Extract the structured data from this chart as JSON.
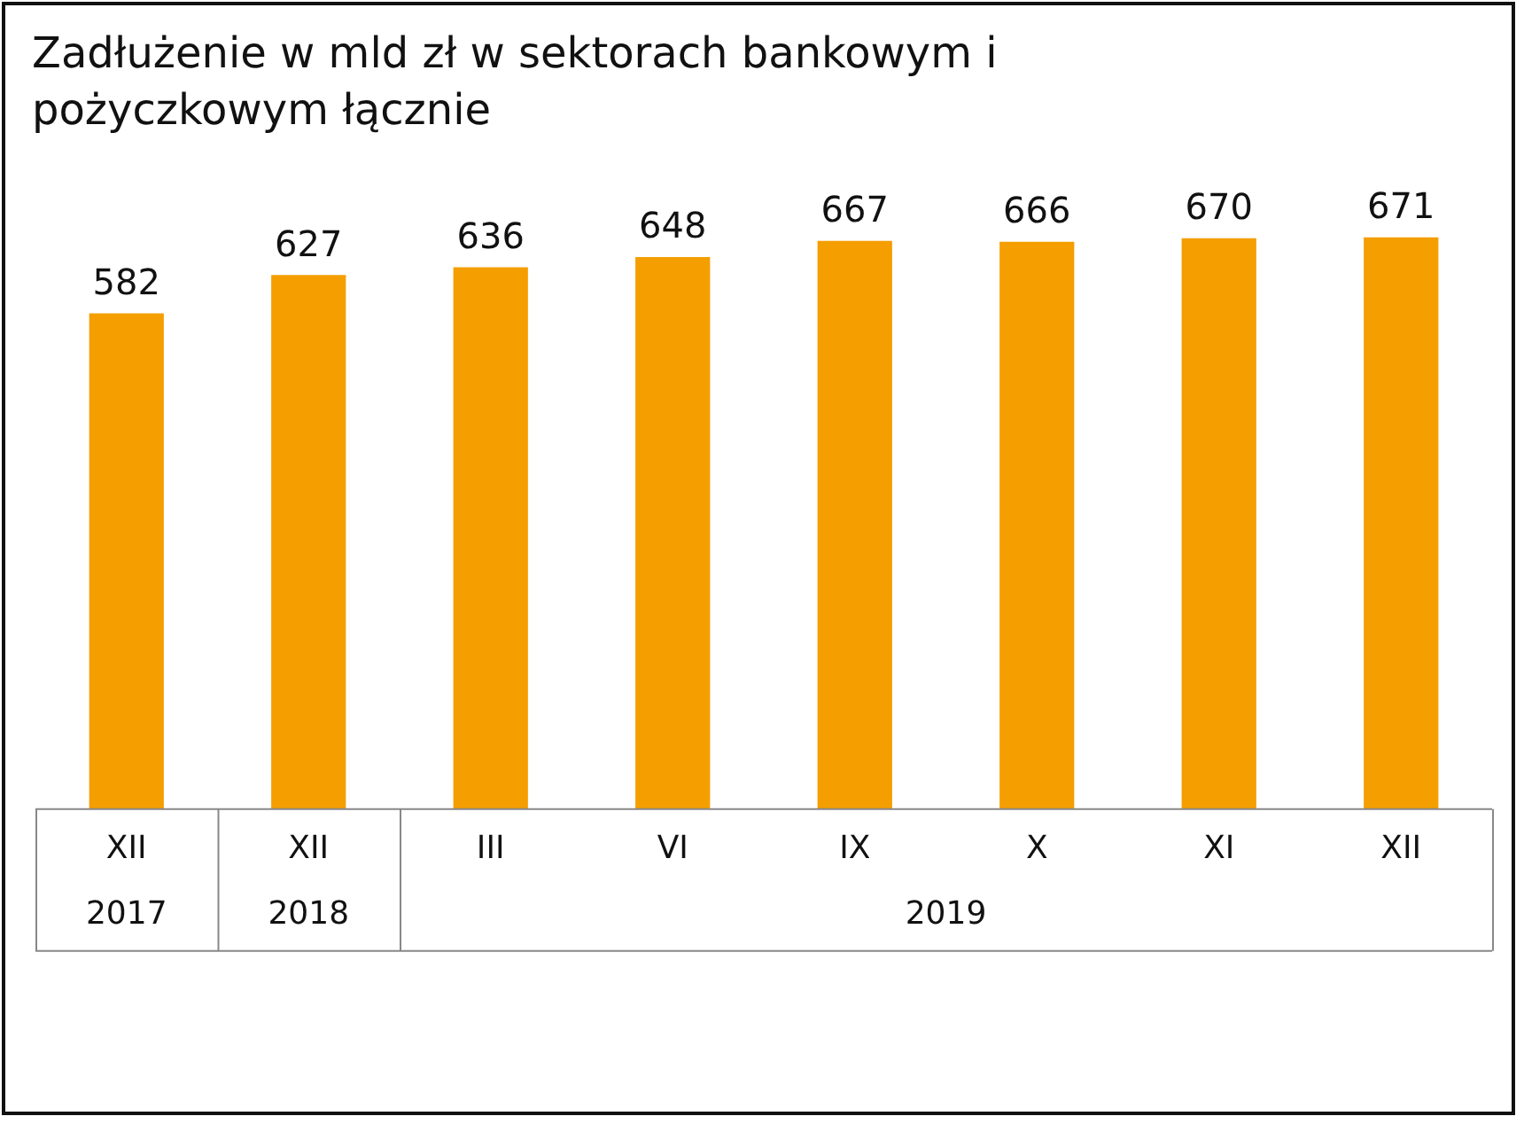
{
  "chart_data": {
    "type": "bar",
    "title": "Zadłużenie w mld zł w sektorach bankowym i pożyczkowym łącznie",
    "categories": [
      "XII",
      "XII",
      "III",
      "VI",
      "IX",
      "X",
      "XI",
      "XII"
    ],
    "values": [
      582,
      627,
      636,
      648,
      667,
      666,
      670,
      671
    ],
    "color": "#f49e00",
    "tick_labels": "x",
    "data_labels": true,
    "grid": false,
    "legend": false,
    "annotations": [
      "2017",
      "2018",
      "2019"
    ]
  }
}
